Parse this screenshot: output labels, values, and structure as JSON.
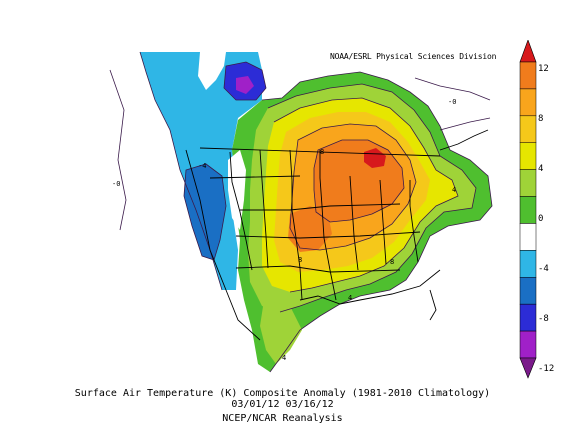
{
  "source_credit": "NOAA/ESRL Physical Sciences Division",
  "caption": {
    "line1": "Surface Air Temperature (K) Composite Anomaly (1981-2010 Climatology)",
    "line2": "03/01/12 03/16/12",
    "line3": "NCEP/NCAR Reanalysis"
  },
  "colorbar": {
    "ticks": [
      "12",
      "8",
      "4",
      "0",
      "-4",
      "-8",
      "-12"
    ],
    "colors": [
      "#d7191c",
      "#f07c1c",
      "#f9a51c",
      "#f5c81a",
      "#e6e600",
      "#9fd338",
      "#4fbf2f",
      "#ffffff",
      "#2fb6e6",
      "#1a6fc4",
      "#2c2cd6",
      "#a020c8",
      "#7a1a8a"
    ]
  },
  "contour_labels": [
    "-4",
    "-0",
    "8",
    "4",
    "8",
    "8",
    "4",
    "-0",
    "4"
  ],
  "legend_units": "K",
  "map": {
    "region": "contiguous United States"
  }
}
